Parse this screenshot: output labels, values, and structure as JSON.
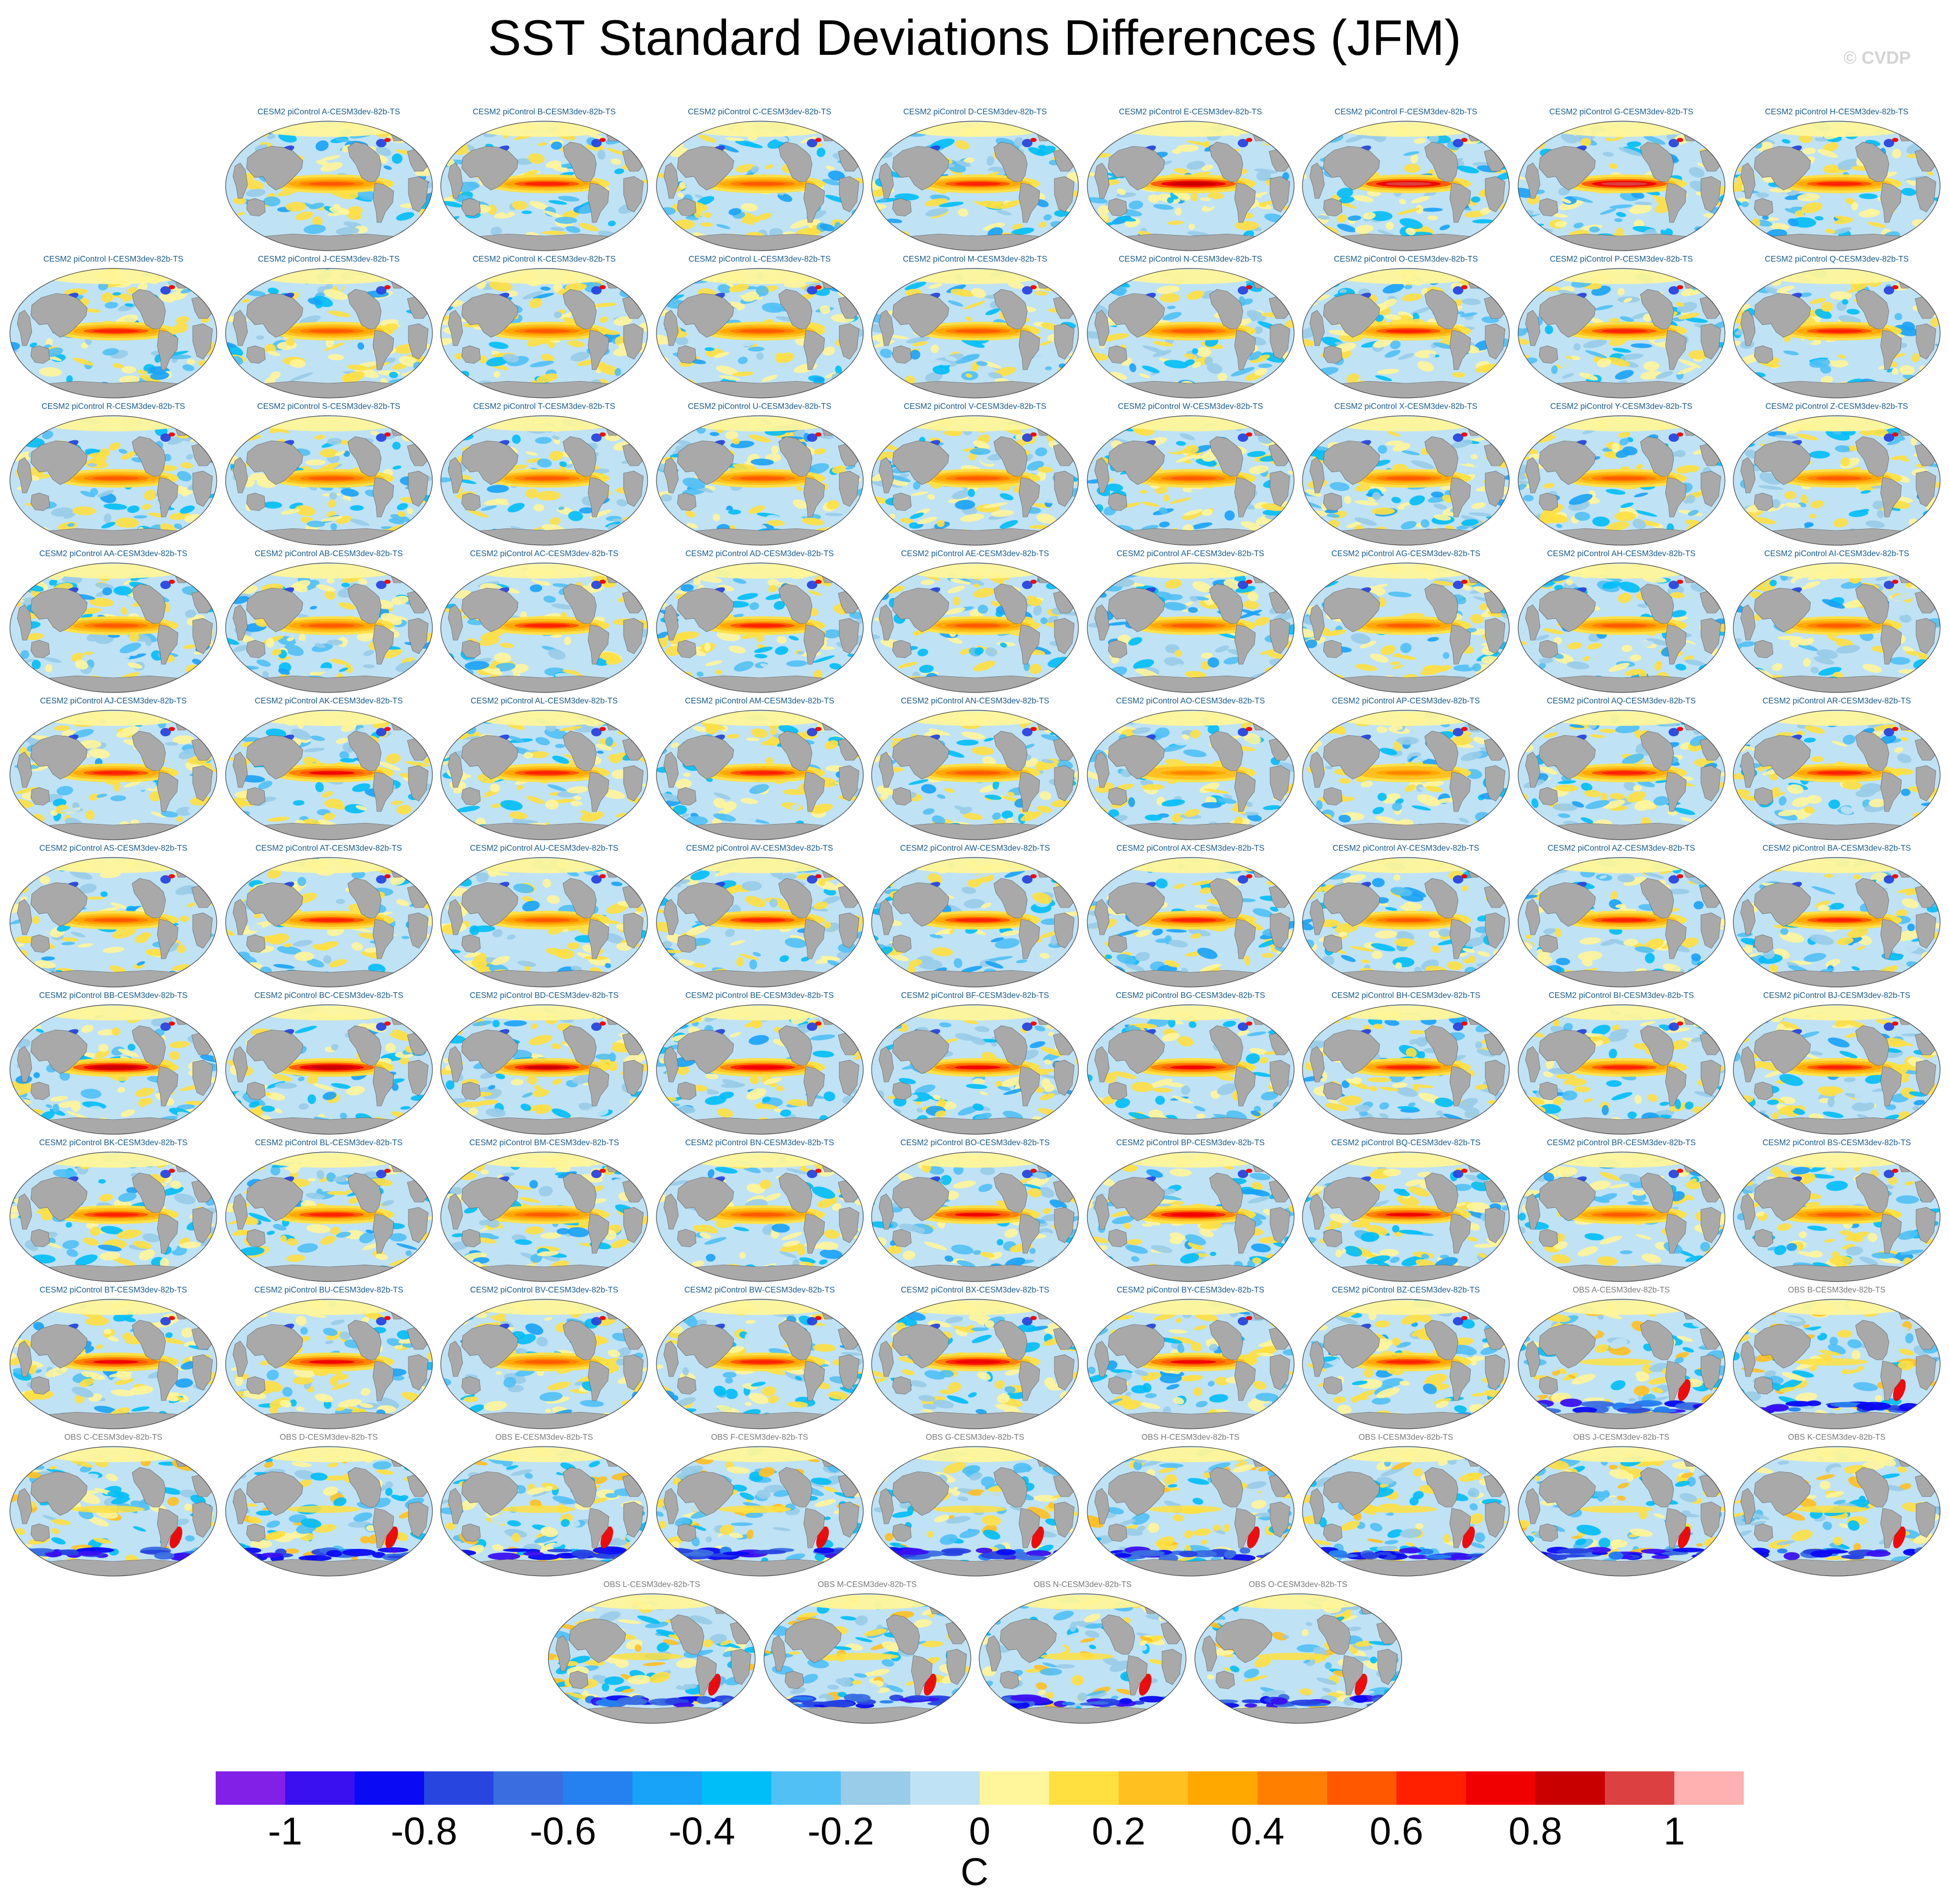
{
  "title": "SST Standard Deviations Differences (JFM)",
  "watermark": "© CVDP",
  "colors": {
    "land": "#a9a9a9",
    "ocean_neutral": "#bfe2f5",
    "panel_title_model": "#1a5b8c",
    "panel_title_obs": "#7a7a7a"
  },
  "chart_data": {
    "type": "heatmap",
    "title": "SST Standard Deviations Differences (JFM)",
    "projection": "Robinson (global, Pacific-centered)",
    "variable": "SST standard deviation difference",
    "season": "JFM",
    "colorbar": {
      "label": "C",
      "ticks": [
        "-1",
        "-0.8",
        "-0.6",
        "-0.4",
        "-0.2",
        "0",
        "0.2",
        "0.4",
        "0.6",
        "0.8",
        "1"
      ],
      "levels": [
        -1.1,
        -1.0,
        -0.9,
        -0.8,
        -0.7,
        -0.6,
        -0.5,
        -0.4,
        -0.3,
        -0.2,
        -0.1,
        0,
        0.1,
        0.2,
        0.3,
        0.4,
        0.5,
        0.6,
        0.7,
        0.8,
        0.9,
        1.0,
        1.1
      ],
      "colors": [
        "#8320e8",
        "#3a10f0",
        "#0a0af5",
        "#2845e0",
        "#3a6ee0",
        "#2580f0",
        "#18a2f8",
        "#00bef8",
        "#50c0f5",
        "#98cce8",
        "#bfe2f5",
        "#fff59a",
        "#ffe040",
        "#ffc020",
        "#ffa800",
        "#ff8000",
        "#ff5800",
        "#ff2000",
        "#f00000",
        "#c80000",
        "#dc4040",
        "#ffb0b0"
      ]
    },
    "panels": [
      {
        "title": "CESM2 piControl A-CESM3dev-82b-TS",
        "group": "model",
        "enso_amp": 0.55
      },
      {
        "title": "CESM2 piControl B-CESM3dev-82b-TS",
        "group": "model",
        "enso_amp": 0.6
      },
      {
        "title": "CESM2 piControl C-CESM3dev-82b-TS",
        "group": "model",
        "enso_amp": 0.55
      },
      {
        "title": "CESM2 piControl D-CESM3dev-82b-TS",
        "group": "model",
        "enso_amp": 0.65
      },
      {
        "title": "CESM2 piControl E-CESM3dev-82b-TS",
        "group": "model",
        "enso_amp": 0.85
      },
      {
        "title": "CESM2 piControl F-CESM3dev-82b-TS",
        "group": "model",
        "enso_amp": 0.9
      },
      {
        "title": "CESM2 piControl G-CESM3dev-82b-TS",
        "group": "model",
        "enso_amp": 0.9
      },
      {
        "title": "CESM2 piControl H-CESM3dev-82b-TS",
        "group": "model",
        "enso_amp": 0.6
      },
      {
        "title": "CESM2 piControl I-CESM3dev-82b-TS",
        "group": "model",
        "enso_amp": 0.6
      },
      {
        "title": "CESM2 piControl J-CESM3dev-82b-TS",
        "group": "model",
        "enso_amp": 0.55
      },
      {
        "title": "CESM2 piControl K-CESM3dev-82b-TS",
        "group": "model",
        "enso_amp": 0.55
      },
      {
        "title": "CESM2 piControl L-CESM3dev-82b-TS",
        "group": "model",
        "enso_amp": 0.5
      },
      {
        "title": "CESM2 piControl M-CESM3dev-82b-TS",
        "group": "model",
        "enso_amp": 0.55
      },
      {
        "title": "CESM2 piControl N-CESM3dev-82b-TS",
        "group": "model",
        "enso_amp": 0.55
      },
      {
        "title": "CESM2 piControl O-CESM3dev-82b-TS",
        "group": "model",
        "enso_amp": 0.65
      },
      {
        "title": "CESM2 piControl P-CESM3dev-82b-TS",
        "group": "model",
        "enso_amp": 0.6
      },
      {
        "title": "CESM2 piControl Q-CESM3dev-82b-TS",
        "group": "model",
        "enso_amp": 0.6
      },
      {
        "title": "CESM2 piControl R-CESM3dev-82b-TS",
        "group": "model",
        "enso_amp": 0.55
      },
      {
        "title": "CESM2 piControl S-CESM3dev-82b-TS",
        "group": "model",
        "enso_amp": 0.55
      },
      {
        "title": "CESM2 piControl T-CESM3dev-82b-TS",
        "group": "model",
        "enso_amp": 0.5
      },
      {
        "title": "CESM2 piControl U-CESM3dev-82b-TS",
        "group": "model",
        "enso_amp": 0.5
      },
      {
        "title": "CESM2 piControl V-CESM3dev-82b-TS",
        "group": "model",
        "enso_amp": 0.5
      },
      {
        "title": "CESM2 piControl W-CESM3dev-82b-TS",
        "group": "model",
        "enso_amp": 0.5
      },
      {
        "title": "CESM2 piControl X-CESM3dev-82b-TS",
        "group": "model",
        "enso_amp": 0.5
      },
      {
        "title": "CESM2 piControl Y-CESM3dev-82b-TS",
        "group": "model",
        "enso_amp": 0.55
      },
      {
        "title": "CESM2 piControl Z-CESM3dev-82b-TS",
        "group": "model",
        "enso_amp": 0.5
      },
      {
        "title": "CESM2 piControl AA-CESM3dev-82b-TS",
        "group": "model",
        "enso_amp": 0.5
      },
      {
        "title": "CESM2 piControl AB-CESM3dev-82b-TS",
        "group": "model",
        "enso_amp": 0.55
      },
      {
        "title": "CESM2 piControl AC-CESM3dev-82b-TS",
        "group": "model",
        "enso_amp": 0.6
      },
      {
        "title": "CESM2 piControl AD-CESM3dev-82b-TS",
        "group": "model",
        "enso_amp": 0.6
      },
      {
        "title": "CESM2 piControl AE-CESM3dev-82b-TS",
        "group": "model",
        "enso_amp": 0.5
      },
      {
        "title": "CESM2 piControl AF-CESM3dev-82b-TS",
        "group": "model",
        "enso_amp": 0.5
      },
      {
        "title": "CESM2 piControl AG-CESM3dev-82b-TS",
        "group": "model",
        "enso_amp": 0.5
      },
      {
        "title": "CESM2 piControl AH-CESM3dev-82b-TS",
        "group": "model",
        "enso_amp": 0.55
      },
      {
        "title": "CESM2 piControl AI-CESM3dev-82b-TS",
        "group": "model",
        "enso_amp": 0.5
      },
      {
        "title": "CESM2 piControl AJ-CESM3dev-82b-TS",
        "group": "model",
        "enso_amp": 0.6
      },
      {
        "title": "CESM2 piControl AK-CESM3dev-82b-TS",
        "group": "model",
        "enso_amp": 0.7
      },
      {
        "title": "CESM2 piControl AL-CESM3dev-82b-TS",
        "group": "model",
        "enso_amp": 0.65
      },
      {
        "title": "CESM2 piControl AM-CESM3dev-82b-TS",
        "group": "model",
        "enso_amp": 0.6
      },
      {
        "title": "CESM2 piControl AN-CESM3dev-82b-TS",
        "group": "model",
        "enso_amp": 0.55
      },
      {
        "title": "CESM2 piControl AO-CESM3dev-82b-TS",
        "group": "model",
        "enso_amp": 0.45
      },
      {
        "title": "CESM2 piControl AP-CESM3dev-82b-TS",
        "group": "model",
        "enso_amp": 0.45
      },
      {
        "title": "CESM2 piControl AQ-CESM3dev-82b-TS",
        "group": "model",
        "enso_amp": 0.6
      },
      {
        "title": "CESM2 piControl AR-CESM3dev-82b-TS",
        "group": "model",
        "enso_amp": 0.65
      },
      {
        "title": "CESM2 piControl AS-CESM3dev-82b-TS",
        "group": "model",
        "enso_amp": 0.55
      },
      {
        "title": "CESM2 piControl AT-CESM3dev-82b-TS",
        "group": "model",
        "enso_amp": 0.6
      },
      {
        "title": "CESM2 piControl AU-CESM3dev-82b-TS",
        "group": "model",
        "enso_amp": 0.55
      },
      {
        "title": "CESM2 piControl AV-CESM3dev-82b-TS",
        "group": "model",
        "enso_amp": 0.6
      },
      {
        "title": "CESM2 piControl AW-CESM3dev-82b-TS",
        "group": "model",
        "enso_amp": 0.65
      },
      {
        "title": "CESM2 piControl AX-CESM3dev-82b-TS",
        "group": "model",
        "enso_amp": 0.6
      },
      {
        "title": "CESM2 piControl AY-CESM3dev-82b-TS",
        "group": "model",
        "enso_amp": 0.55
      },
      {
        "title": "CESM2 piControl AZ-CESM3dev-82b-TS",
        "group": "model",
        "enso_amp": 0.65
      },
      {
        "title": "CESM2 piControl BA-CESM3dev-82b-TS",
        "group": "model",
        "enso_amp": 0.65
      },
      {
        "title": "CESM2 piControl BB-CESM3dev-82b-TS",
        "group": "model",
        "enso_amp": 0.85
      },
      {
        "title": "CESM2 piControl BC-CESM3dev-82b-TS",
        "group": "model",
        "enso_amp": 0.85
      },
      {
        "title": "CESM2 piControl BD-CESM3dev-82b-TS",
        "group": "model",
        "enso_amp": 0.8
      },
      {
        "title": "CESM2 piControl BE-CESM3dev-82b-TS",
        "group": "model",
        "enso_amp": 0.75
      },
      {
        "title": "CESM2 piControl BF-CESM3dev-82b-TS",
        "group": "model",
        "enso_amp": 0.7
      },
      {
        "title": "CESM2 piControl BG-CESM3dev-82b-TS",
        "group": "model",
        "enso_amp": 0.7
      },
      {
        "title": "CESM2 piControl BH-CESM3dev-82b-TS",
        "group": "model",
        "enso_amp": 0.6
      },
      {
        "title": "CESM2 piControl BI-CESM3dev-82b-TS",
        "group": "model",
        "enso_amp": 0.6
      },
      {
        "title": "CESM2 piControl BJ-CESM3dev-82b-TS",
        "group": "model",
        "enso_amp": 0.6
      },
      {
        "title": "CESM2 piControl BK-CESM3dev-82b-TS",
        "group": "model",
        "enso_amp": 0.65
      },
      {
        "title": "CESM2 piControl BL-CESM3dev-82b-TS",
        "group": "model",
        "enso_amp": 0.6
      },
      {
        "title": "CESM2 piControl BM-CESM3dev-82b-TS",
        "group": "model",
        "enso_amp": 0.55
      },
      {
        "title": "CESM2 piControl BN-CESM3dev-82b-TS",
        "group": "model",
        "enso_amp": 0.55
      },
      {
        "title": "CESM2 piControl BO-CESM3dev-82b-TS",
        "group": "model",
        "enso_amp": 0.7
      },
      {
        "title": "CESM2 piControl BP-CESM3dev-82b-TS",
        "group": "model",
        "enso_amp": 0.75
      },
      {
        "title": "CESM2 piControl BQ-CESM3dev-82b-TS",
        "group": "model",
        "enso_amp": 0.7
      },
      {
        "title": "CESM2 piControl BR-CESM3dev-82b-TS",
        "group": "model",
        "enso_amp": 0.5
      },
      {
        "title": "CESM2 piControl BS-CESM3dev-82b-TS",
        "group": "model",
        "enso_amp": 0.55
      },
      {
        "title": "CESM2 piControl BT-CESM3dev-82b-TS",
        "group": "model",
        "enso_amp": 0.7
      },
      {
        "title": "CESM2 piControl BU-CESM3dev-82b-TS",
        "group": "model",
        "enso_amp": 0.7
      },
      {
        "title": "CESM2 piControl BV-CESM3dev-82b-TS",
        "group": "model",
        "enso_amp": 0.55
      },
      {
        "title": "CESM2 piControl BW-CESM3dev-82b-TS",
        "group": "model",
        "enso_amp": 0.6
      },
      {
        "title": "CESM2 piControl BX-CESM3dev-82b-TS",
        "group": "model",
        "enso_amp": 0.75
      },
      {
        "title": "CESM2 piControl BY-CESM3dev-82b-TS",
        "group": "model",
        "enso_amp": 0.7
      },
      {
        "title": "CESM2 piControl BZ-CESM3dev-82b-TS",
        "group": "model",
        "enso_amp": 0.65
      },
      {
        "title": "OBS A-CESM3dev-82b-TS",
        "group": "obs",
        "enso_amp": 0.2
      },
      {
        "title": "OBS B-CESM3dev-82b-TS",
        "group": "obs",
        "enso_amp": 0.2
      },
      {
        "title": "OBS C-CESM3dev-82b-TS",
        "group": "obs",
        "enso_amp": 0.15
      },
      {
        "title": "OBS D-CESM3dev-82b-TS",
        "group": "obs",
        "enso_amp": 0.15
      },
      {
        "title": "OBS E-CESM3dev-82b-TS",
        "group": "obs",
        "enso_amp": 0.15
      },
      {
        "title": "OBS F-CESM3dev-82b-TS",
        "group": "obs",
        "enso_amp": 0.15
      },
      {
        "title": "OBS G-CESM3dev-82b-TS",
        "group": "obs",
        "enso_amp": 0.15
      },
      {
        "title": "OBS H-CESM3dev-82b-TS",
        "group": "obs",
        "enso_amp": 0.15
      },
      {
        "title": "OBS I-CESM3dev-82b-TS",
        "group": "obs",
        "enso_amp": 0.15
      },
      {
        "title": "OBS J-CESM3dev-82b-TS",
        "group": "obs",
        "enso_amp": 0.15
      },
      {
        "title": "OBS K-CESM3dev-82b-TS",
        "group": "obs",
        "enso_amp": 0.15
      },
      {
        "title": "OBS L-CESM3dev-82b-TS",
        "group": "obs",
        "enso_amp": 0.15
      },
      {
        "title": "OBS M-CESM3dev-82b-TS",
        "group": "obs",
        "enso_amp": 0.15
      },
      {
        "title": "OBS N-CESM3dev-82b-TS",
        "group": "obs",
        "enso_amp": 0.15
      },
      {
        "title": "OBS O-CESM3dev-82b-TS",
        "group": "obs",
        "enso_amp": 0.15
      }
    ]
  }
}
